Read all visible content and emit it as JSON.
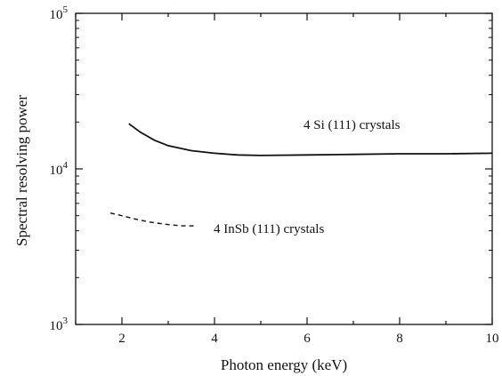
{
  "chart_data": {
    "type": "line",
    "title": "",
    "xlabel": "Photon energy (keV)",
    "ylabel": "Spectral resolving power",
    "xlim": [
      1,
      10
    ],
    "ylim": [
      1000,
      100000
    ],
    "yscale": "log",
    "grid": false,
    "x_ticks": [
      2,
      4,
      6,
      8,
      10
    ],
    "x_tick_labels": [
      "2",
      "4",
      "6",
      "8",
      "10"
    ],
    "y_ticks": [
      {
        "value": 1000,
        "base": "10",
        "exp": "3"
      },
      {
        "value": 10000,
        "base": "10",
        "exp": "4"
      },
      {
        "value": 100000,
        "base": "10",
        "exp": "5"
      }
    ],
    "series": [
      {
        "name": "4 Si (111) crystals",
        "style": "solid",
        "points": [
          [
            2.15,
            19500
          ],
          [
            2.4,
            17200
          ],
          [
            2.7,
            15300
          ],
          [
            3.0,
            14100
          ],
          [
            3.5,
            13100
          ],
          [
            4.0,
            12600
          ],
          [
            4.5,
            12300
          ],
          [
            5.0,
            12200
          ],
          [
            6.0,
            12300
          ],
          [
            7.0,
            12400
          ],
          [
            8.0,
            12500
          ],
          [
            9.0,
            12500
          ],
          [
            10.0,
            12600
          ]
        ]
      },
      {
        "name": "4 InSb (111) crystals",
        "style": "dashed",
        "points": [
          [
            1.75,
            5200
          ],
          [
            2.0,
            5000
          ],
          [
            2.3,
            4750
          ],
          [
            2.6,
            4550
          ],
          [
            3.0,
            4380
          ],
          [
            3.3,
            4300
          ],
          [
            3.6,
            4300
          ]
        ]
      }
    ]
  }
}
